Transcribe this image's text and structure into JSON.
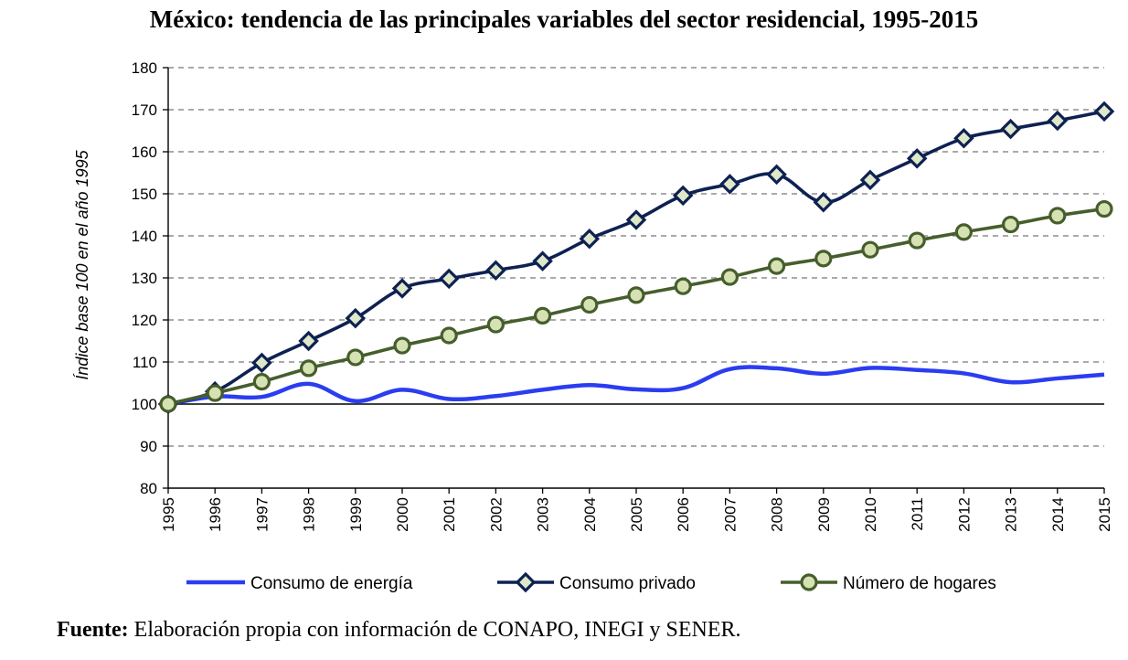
{
  "chart_data": {
    "type": "line",
    "title": "México: tendencia de las principales variables del sector residencial, 1995-2015",
    "xlabel": "",
    "ylabel": "Índice base 100 en el año 1995",
    "ylim": [
      80,
      180
    ],
    "yticks": [
      80,
      90,
      100,
      110,
      120,
      130,
      140,
      150,
      160,
      170,
      180
    ],
    "categories": [
      "1995",
      "1996",
      "1997",
      "1998",
      "1999",
      "2000",
      "2001",
      "2002",
      "2003",
      "2004",
      "2005",
      "2006",
      "2007",
      "2008",
      "2009",
      "2010",
      "2011",
      "2012",
      "2013",
      "2014",
      "2015"
    ],
    "grid": true,
    "legend_position": "bottom",
    "series": [
      {
        "name": "Consumo de energía",
        "marker": "none",
        "color": "#2b3df0",
        "values": [
          100.0,
          101.8,
          101.7,
          104.8,
          100.7,
          103.4,
          101.2,
          101.9,
          103.4,
          104.5,
          103.5,
          103.8,
          108.3,
          108.5,
          107.2,
          108.6,
          108.1,
          107.3,
          105.2,
          106.1,
          107.0
        ]
      },
      {
        "name": "Consumo privado",
        "marker": "diamond",
        "color": "#0e2152",
        "values": [
          100.0,
          103.0,
          109.8,
          115.0,
          120.4,
          127.5,
          129.8,
          131.8,
          134.0,
          139.3,
          143.8,
          149.6,
          152.3,
          154.6,
          148.0,
          153.3,
          158.4,
          163.2,
          165.4,
          167.4,
          169.6
        ]
      },
      {
        "name": "Número de hogares",
        "marker": "circle",
        "color": "#465e2c",
        "values": [
          100.0,
          102.6,
          105.3,
          108.5,
          111.1,
          113.9,
          116.3,
          118.9,
          121.0,
          123.6,
          125.9,
          128.0,
          130.2,
          132.8,
          134.6,
          136.7,
          138.9,
          140.9,
          142.7,
          144.8,
          146.4
        ]
      }
    ]
  },
  "source": {
    "label": "Fuente:",
    "text": " Elaboración propia con información de CONAPO, INEGI y SENER."
  }
}
